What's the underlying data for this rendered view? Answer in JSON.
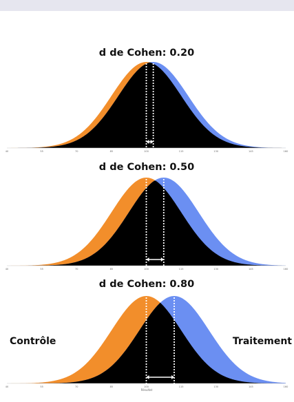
{
  "chart_data": [
    {
      "type": "area",
      "title": "d de Cohen: 0.20",
      "cohen_d": 0.2,
      "series": [
        {
          "name": "Contrôle",
          "mean": 100,
          "sd": 15,
          "color": "#f28e2b"
        },
        {
          "name": "Traitement",
          "mean": 103,
          "sd": 15,
          "color": "#6b8ff2"
        }
      ],
      "overlap_color": "#000000",
      "x_ticks": [
        40,
        55,
        70,
        85,
        100,
        115,
        130,
        145,
        160
      ],
      "xlim": [
        40,
        160
      ],
      "xlabel": ""
    },
    {
      "type": "area",
      "title": "d de Cohen: 0.50",
      "cohen_d": 0.5,
      "series": [
        {
          "name": "Contrôle",
          "mean": 100,
          "sd": 15,
          "color": "#f28e2b"
        },
        {
          "name": "Traitement",
          "mean": 107.5,
          "sd": 15,
          "color": "#6b8ff2"
        }
      ],
      "overlap_color": "#000000",
      "x_ticks": [
        40,
        55,
        70,
        85,
        100,
        115,
        130,
        145,
        160
      ],
      "xlim": [
        40,
        160
      ],
      "xlabel": ""
    },
    {
      "type": "area",
      "title": "d de Cohen: 0.80",
      "cohen_d": 0.8,
      "series": [
        {
          "name": "Contrôle",
          "mean": 100,
          "sd": 15,
          "color": "#f28e2b"
        },
        {
          "name": "Traitement",
          "mean": 112,
          "sd": 15,
          "color": "#6b8ff2"
        }
      ],
      "overlap_color": "#000000",
      "x_ticks": [
        40,
        55,
        70,
        85,
        100,
        115,
        130,
        145,
        160
      ],
      "xlim": [
        40,
        160
      ],
      "xlabel": "Résultat",
      "labels": {
        "control": "Contrôle",
        "treatment": "Traitement"
      }
    }
  ]
}
